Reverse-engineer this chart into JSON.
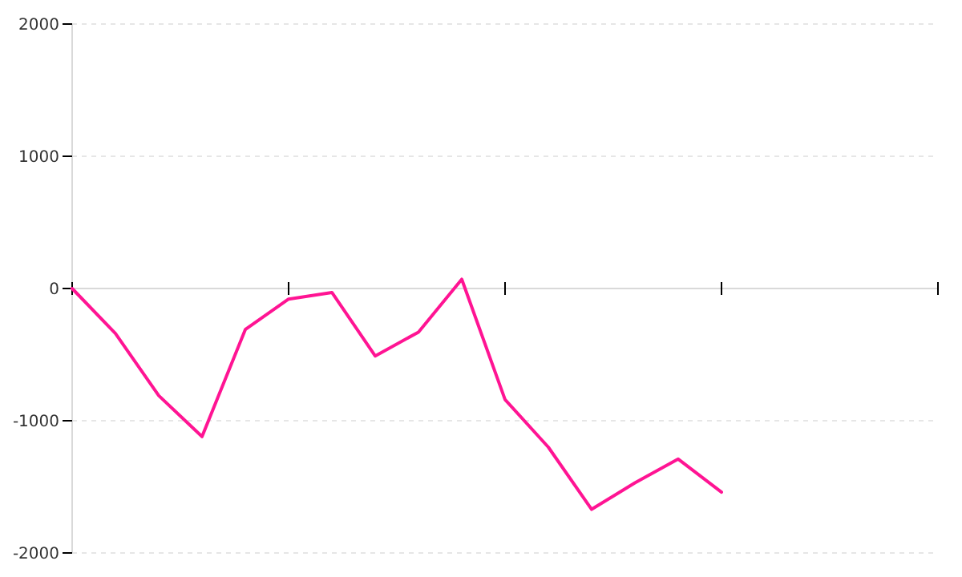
{
  "chart_data": {
    "type": "line",
    "categories": [
      null,
      null,
      null,
      null,
      null,
      null,
      null,
      null,
      null,
      null,
      null,
      null,
      null,
      null,
      null,
      null,
      null,
      null,
      null,
      null,
      null
    ],
    "series": [
      {
        "color": "#ff1493",
        "values": [
          0,
          -340,
          -810,
          -1120,
          -310,
          -80,
          -30,
          -510,
          -330,
          70,
          -840,
          -1200,
          -1670,
          -1470,
          -1290,
          -1540,
          null,
          null,
          null,
          null,
          null
        ]
      }
    ],
    "ylim": [
      -2000,
      2000
    ],
    "yticks": [
      -2000,
      -1000,
      0,
      1000,
      2000
    ],
    "grid": "y",
    "tick_labels": "y",
    "marker": "none",
    "line_style": "solid"
  }
}
